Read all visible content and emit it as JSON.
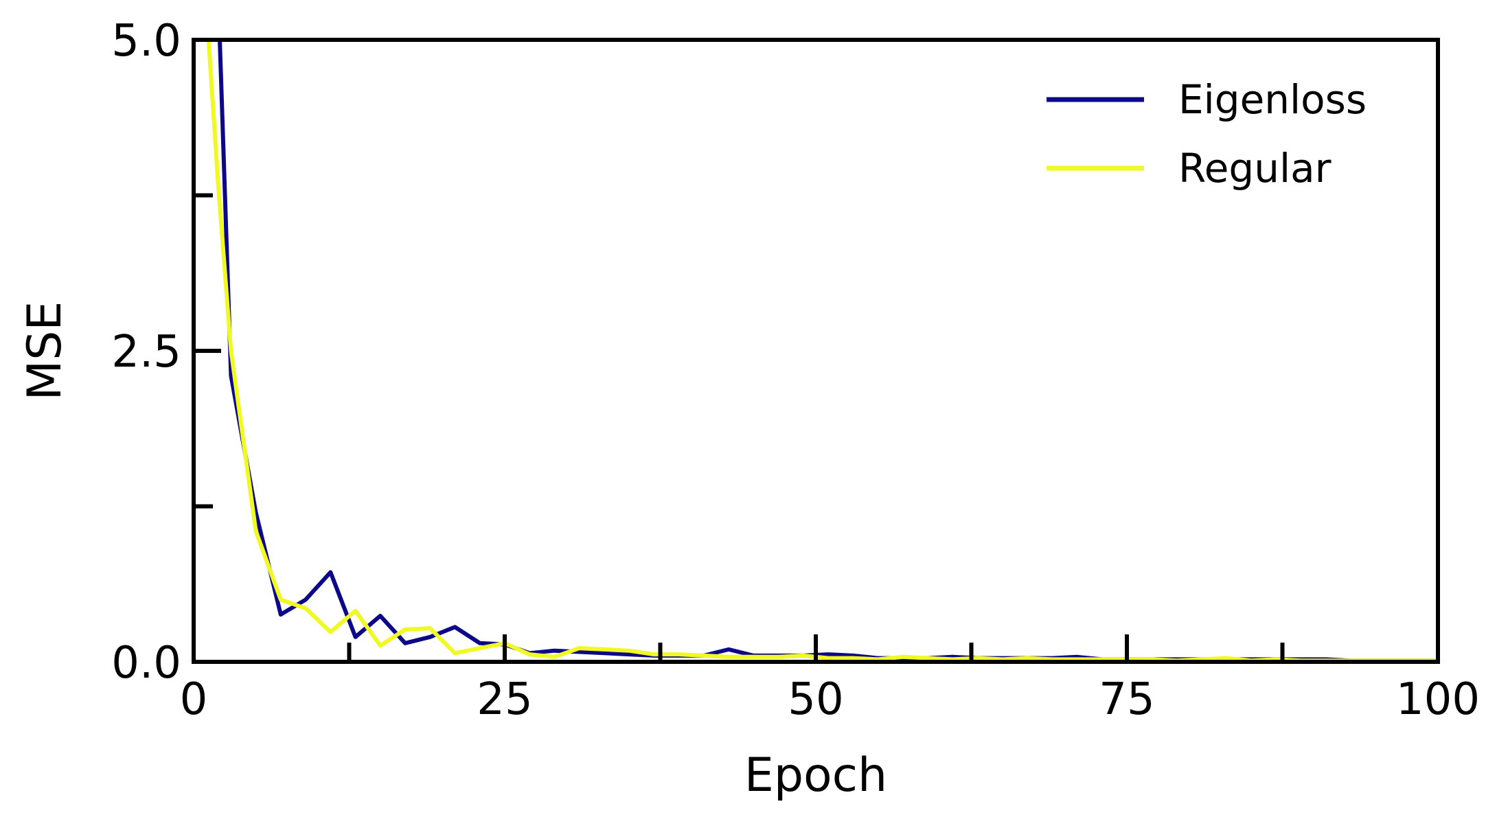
{
  "chart_data": {
    "type": "line",
    "title": "",
    "xlabel": "Epoch",
    "ylabel": "MSE",
    "xlim": [
      0,
      100
    ],
    "ylim": [
      0,
      5
    ],
    "x_major_ticks": [
      0,
      25,
      50,
      75,
      100
    ],
    "x_minor_ticks": [
      12.5,
      37.5,
      62.5,
      87.5
    ],
    "y_major_ticks": [
      0,
      2.5,
      5
    ],
    "y_minor_ticks": [
      1.25,
      3.75
    ],
    "x_tick_labels": [
      "0",
      "25",
      "50",
      "75",
      "100"
    ],
    "y_tick_labels": [
      "0.0",
      "2.5",
      "5.0"
    ],
    "grid": false,
    "legend": "top-right",
    "series": [
      {
        "name": "Eigenloss",
        "color": "#0d0887",
        "x": [
          2,
          3,
          5,
          7,
          9,
          11,
          13,
          15,
          17,
          19,
          21,
          23,
          25,
          27,
          29,
          31,
          33,
          35,
          37,
          39,
          41,
          43,
          45,
          47,
          49,
          51,
          53,
          55,
          57,
          59,
          61,
          63,
          65,
          67,
          69,
          71,
          73,
          75,
          77,
          79,
          81,
          83,
          85,
          87,
          89,
          91,
          93,
          95,
          97,
          99,
          100
        ],
        "values": [
          5.3,
          2.3,
          1.2,
          0.38,
          0.5,
          0.72,
          0.2,
          0.37,
          0.15,
          0.2,
          0.28,
          0.15,
          0.14,
          0.07,
          0.09,
          0.08,
          0.07,
          0.06,
          0.05,
          0.05,
          0.05,
          0.1,
          0.05,
          0.05,
          0.05,
          0.06,
          0.05,
          0.03,
          0.03,
          0.03,
          0.04,
          0.03,
          0.03,
          0.03,
          0.03,
          0.04,
          0.02,
          0.02,
          0.02,
          0.02,
          0.02,
          0.02,
          0.02,
          0.02,
          0.02,
          0.02,
          0.01,
          0.01,
          0.01,
          0.01,
          0.01
        ]
      },
      {
        "name": "Regular",
        "color": "#f0f921",
        "x": [
          1,
          2,
          3,
          5,
          7,
          9,
          11,
          13,
          15,
          17,
          19,
          21,
          23,
          25,
          27,
          29,
          31,
          33,
          35,
          37,
          39,
          41,
          43,
          45,
          47,
          49,
          51,
          53,
          55,
          57,
          59,
          61,
          63,
          65,
          67,
          69,
          71,
          73,
          75,
          77,
          79,
          81,
          83,
          85,
          87,
          89,
          91,
          93,
          95,
          97,
          99,
          100
        ],
        "values": [
          5.3,
          3.8,
          2.5,
          1.05,
          0.5,
          0.43,
          0.24,
          0.41,
          0.13,
          0.26,
          0.27,
          0.07,
          0.11,
          0.15,
          0.06,
          0.04,
          0.11,
          0.1,
          0.09,
          0.06,
          0.06,
          0.05,
          0.04,
          0.04,
          0.04,
          0.05,
          0.03,
          0.03,
          0.02,
          0.04,
          0.03,
          0.02,
          0.03,
          0.02,
          0.03,
          0.02,
          0.02,
          0.02,
          0.02,
          0.02,
          0.01,
          0.02,
          0.03,
          0.01,
          0.02,
          0.01,
          0.01,
          0.01,
          0.01,
          0.01,
          0.01,
          0.01
        ]
      }
    ]
  }
}
